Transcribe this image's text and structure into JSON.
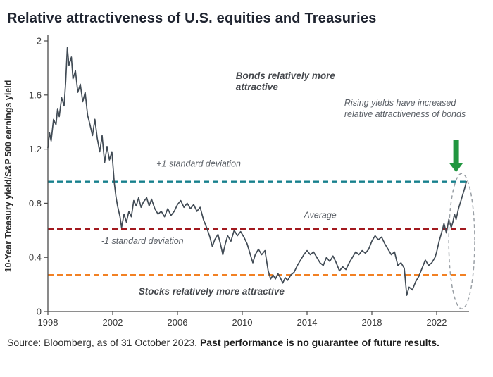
{
  "title": "Relative attractiveness of U.S. equities and Treasuries",
  "source": {
    "prefix": "Source: Bloomberg, as of 31 October 2023. ",
    "bold": "Past performance is no guarantee of future results."
  },
  "chart_data": {
    "type": "line",
    "title": "Relative attractiveness of U.S. equities and Treasuries",
    "xlabel": "",
    "ylabel": "10-Year Treasury yield/S&P 500 earnings yield",
    "xlim": [
      1998,
      2024
    ],
    "ylim": [
      0,
      2
    ],
    "xticks": [
      1998,
      2002,
      2006,
      2010,
      2014,
      2018,
      2022
    ],
    "yticks": [
      0,
      0.4,
      0.8,
      1.2,
      1.6,
      2
    ],
    "grid": false,
    "legend": "none",
    "reference_lines": [
      {
        "name": "plus-one-standard-deviation",
        "value": 0.96,
        "color": "#17808d"
      },
      {
        "name": "average",
        "value": 0.61,
        "color": "#a2191f"
      },
      {
        "name": "minus-one-standard-deviation",
        "value": 0.27,
        "color": "#f28124"
      }
    ],
    "annotations": [
      {
        "x": 2009.6,
        "y": 1.72,
        "bold": true,
        "lines": [
          "Bonds relatively more",
          "attractive"
        ]
      },
      {
        "x": 2016.3,
        "y": 1.52,
        "bold": false,
        "lines": [
          "Rising yields have increased",
          "relative attractiveness of bonds"
        ]
      },
      {
        "x": 2004.7,
        "y": 1.07,
        "bold": false,
        "lines": [
          "+1 standard deviation"
        ]
      },
      {
        "x": 2013.8,
        "y": 0.69,
        "bold": false,
        "lines": [
          "Average"
        ]
      },
      {
        "x": 2001.3,
        "y": 0.5,
        "bold": false,
        "lines": [
          "-1 standard deviation"
        ]
      },
      {
        "x": 2003.6,
        "y": 0.125,
        "bold": true,
        "lines": [
          "Stocks relatively more attractive"
        ]
      }
    ],
    "arrow": {
      "x": 2023.2,
      "from": 1.27,
      "to": 1.03,
      "color": "#21963f"
    },
    "highlight_ellipse": {
      "cx": 2023.55,
      "cy": 0.52,
      "rx_years": 0.8,
      "ry_value": 0.5,
      "color": "#9aa0a6"
    },
    "series": [
      {
        "name": "10-Year Treasury yield / S&P 500 earnings yield",
        "color": "#414b55",
        "points": [
          [
            1998,
            1.21
          ],
          [
            1998.1,
            1.32
          ],
          [
            1998.2,
            1.26
          ],
          [
            1998.35,
            1.42
          ],
          [
            1998.5,
            1.38
          ],
          [
            1998.6,
            1.5
          ],
          [
            1998.7,
            1.44
          ],
          [
            1998.85,
            1.58
          ],
          [
            1999,
            1.52
          ],
          [
            1999.1,
            1.7
          ],
          [
            1999.2,
            1.95
          ],
          [
            1999.3,
            1.82
          ],
          [
            1999.45,
            1.88
          ],
          [
            1999.55,
            1.72
          ],
          [
            1999.7,
            1.78
          ],
          [
            1999.85,
            1.62
          ],
          [
            2000,
            1.68
          ],
          [
            2000.15,
            1.55
          ],
          [
            2000.3,
            1.62
          ],
          [
            2000.45,
            1.45
          ],
          [
            2000.6,
            1.38
          ],
          [
            2000.75,
            1.3
          ],
          [
            2000.9,
            1.42
          ],
          [
            2001.05,
            1.28
          ],
          [
            2001.2,
            1.18
          ],
          [
            2001.35,
            1.3
          ],
          [
            2001.5,
            1.1
          ],
          [
            2001.65,
            1.22
          ],
          [
            2001.8,
            1.12
          ],
          [
            2001.95,
            1.18
          ],
          [
            2002.1,
            0.95
          ],
          [
            2002.2,
            0.85
          ],
          [
            2002.3,
            0.78
          ],
          [
            2002.45,
            0.7
          ],
          [
            2002.55,
            0.62
          ],
          [
            2002.7,
            0.72
          ],
          [
            2002.85,
            0.66
          ],
          [
            2003,
            0.74
          ],
          [
            2003.15,
            0.7
          ],
          [
            2003.3,
            0.82
          ],
          [
            2003.45,
            0.78
          ],
          [
            2003.6,
            0.84
          ],
          [
            2003.75,
            0.77
          ],
          [
            2003.9,
            0.81
          ],
          [
            2004.1,
            0.84
          ],
          [
            2004.25,
            0.78
          ],
          [
            2004.4,
            0.83
          ],
          [
            2004.6,
            0.76
          ],
          [
            2004.8,
            0.72
          ],
          [
            2005,
            0.74
          ],
          [
            2005.2,
            0.7
          ],
          [
            2005.4,
            0.76
          ],
          [
            2005.6,
            0.71
          ],
          [
            2005.8,
            0.74
          ],
          [
            2006,
            0.79
          ],
          [
            2006.2,
            0.82
          ],
          [
            2006.4,
            0.77
          ],
          [
            2006.6,
            0.8
          ],
          [
            2006.8,
            0.76
          ],
          [
            2007,
            0.79
          ],
          [
            2007.2,
            0.74
          ],
          [
            2007.4,
            0.77
          ],
          [
            2007.6,
            0.68
          ],
          [
            2007.8,
            0.62
          ],
          [
            2008,
            0.55
          ],
          [
            2008.15,
            0.48
          ],
          [
            2008.3,
            0.53
          ],
          [
            2008.5,
            0.57
          ],
          [
            2008.65,
            0.5
          ],
          [
            2008.8,
            0.42
          ],
          [
            2008.95,
            0.5
          ],
          [
            2009.1,
            0.56
          ],
          [
            2009.3,
            0.52
          ],
          [
            2009.5,
            0.6
          ],
          [
            2009.7,
            0.56
          ],
          [
            2009.9,
            0.59
          ],
          [
            2010.1,
            0.55
          ],
          [
            2010.3,
            0.5
          ],
          [
            2010.5,
            0.42
          ],
          [
            2010.65,
            0.36
          ],
          [
            2010.8,
            0.42
          ],
          [
            2011,
            0.46
          ],
          [
            2011.2,
            0.42
          ],
          [
            2011.4,
            0.45
          ],
          [
            2011.6,
            0.3
          ],
          [
            2011.75,
            0.24
          ],
          [
            2011.9,
            0.27
          ],
          [
            2012.05,
            0.24
          ],
          [
            2012.2,
            0.28
          ],
          [
            2012.35,
            0.25
          ],
          [
            2012.5,
            0.21
          ],
          [
            2012.65,
            0.25
          ],
          [
            2012.8,
            0.23
          ],
          [
            2013,
            0.27
          ],
          [
            2013.2,
            0.29
          ],
          [
            2013.4,
            0.34
          ],
          [
            2013.6,
            0.38
          ],
          [
            2013.8,
            0.42
          ],
          [
            2014,
            0.45
          ],
          [
            2014.2,
            0.42
          ],
          [
            2014.4,
            0.44
          ],
          [
            2014.6,
            0.4
          ],
          [
            2014.8,
            0.36
          ],
          [
            2015,
            0.34
          ],
          [
            2015.2,
            0.4
          ],
          [
            2015.4,
            0.37
          ],
          [
            2015.6,
            0.41
          ],
          [
            2015.8,
            0.36
          ],
          [
            2016,
            0.3
          ],
          [
            2016.2,
            0.33
          ],
          [
            2016.4,
            0.31
          ],
          [
            2016.6,
            0.36
          ],
          [
            2016.8,
            0.4
          ],
          [
            2017,
            0.44
          ],
          [
            2017.2,
            0.42
          ],
          [
            2017.4,
            0.45
          ],
          [
            2017.6,
            0.43
          ],
          [
            2017.8,
            0.46
          ],
          [
            2018,
            0.52
          ],
          [
            2018.2,
            0.56
          ],
          [
            2018.4,
            0.53
          ],
          [
            2018.6,
            0.55
          ],
          [
            2018.8,
            0.5
          ],
          [
            2019,
            0.46
          ],
          [
            2019.2,
            0.42
          ],
          [
            2019.4,
            0.44
          ],
          [
            2019.6,
            0.34
          ],
          [
            2019.8,
            0.36
          ],
          [
            2020,
            0.32
          ],
          [
            2020.15,
            0.12
          ],
          [
            2020.3,
            0.18
          ],
          [
            2020.5,
            0.16
          ],
          [
            2020.7,
            0.22
          ],
          [
            2020.9,
            0.26
          ],
          [
            2021.1,
            0.32
          ],
          [
            2021.3,
            0.38
          ],
          [
            2021.5,
            0.34
          ],
          [
            2021.7,
            0.36
          ],
          [
            2021.9,
            0.4
          ],
          [
            2022,
            0.44
          ],
          [
            2022.15,
            0.52
          ],
          [
            2022.3,
            0.58
          ],
          [
            2022.45,
            0.65
          ],
          [
            2022.6,
            0.58
          ],
          [
            2022.75,
            0.68
          ],
          [
            2022.9,
            0.62
          ],
          [
            2023,
            0.66
          ],
          [
            2023.1,
            0.72
          ],
          [
            2023.2,
            0.68
          ],
          [
            2023.35,
            0.76
          ],
          [
            2023.5,
            0.82
          ],
          [
            2023.65,
            0.88
          ],
          [
            2023.75,
            0.92
          ],
          [
            2023.83,
            0.96
          ]
        ]
      }
    ]
  }
}
